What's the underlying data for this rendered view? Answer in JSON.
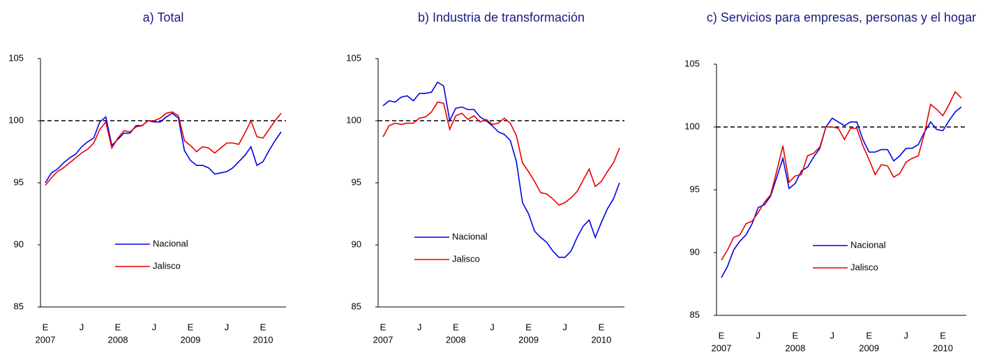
{
  "chart_data": [
    {
      "type": "line",
      "title": "a) Total",
      "categories": [
        "E",
        null,
        null,
        null,
        null,
        null,
        "J",
        null,
        null,
        null,
        null,
        null,
        "E",
        null,
        null,
        null,
        null,
        null,
        "J",
        null,
        null,
        null,
        null,
        null,
        "E",
        null,
        null,
        null,
        null,
        null,
        "J",
        null,
        null,
        null,
        null,
        null,
        "E",
        null,
        null,
        null
      ],
      "year_labels": [
        {
          "value": 0,
          "label": "2007"
        },
        {
          "value": 12,
          "label": "2008"
        },
        {
          "value": 24,
          "label": "2009"
        },
        {
          "value": 36,
          "label": "2010"
        }
      ],
      "series": [
        {
          "name": "Nacional",
          "color": "#0000e6",
          "values": [
            95.0,
            95.8,
            96.1,
            96.6,
            97.0,
            97.3,
            97.9,
            98.3,
            98.6,
            99.9,
            100.3,
            98.0,
            98.5,
            99.0,
            99.0,
            99.6,
            99.6,
            100.0,
            99.9,
            99.9,
            100.3,
            100.6,
            100.2,
            97.6,
            96.8,
            96.4,
            96.4,
            96.2,
            95.7,
            95.8,
            95.9,
            96.2,
            96.7,
            97.2,
            97.9,
            96.4,
            96.7,
            97.6,
            98.4,
            99.1
          ]
        },
        {
          "name": "Jalisco",
          "color": "#e60000",
          "values": [
            94.8,
            95.4,
            95.9,
            96.2,
            96.6,
            97.0,
            97.4,
            97.7,
            98.2,
            99.3,
            99.9,
            97.8,
            98.6,
            99.2,
            99.1,
            99.5,
            99.6,
            100.0,
            100.0,
            100.2,
            100.6,
            100.7,
            100.4,
            98.4,
            98.0,
            97.5,
            97.9,
            97.8,
            97.4,
            97.8,
            98.2,
            98.2,
            98.1,
            99.0,
            100.0,
            98.7,
            98.6,
            99.3,
            100.0,
            100.6
          ]
        }
      ],
      "ylim": [
        85,
        105
      ],
      "yticks": [
        85,
        90,
        95,
        100,
        105
      ],
      "reference_line": 100,
      "legend": "center"
    },
    {
      "type": "line",
      "title": "b) Industria de transformación",
      "categories": [
        "E",
        null,
        null,
        null,
        null,
        null,
        "J",
        null,
        null,
        null,
        null,
        null,
        "E",
        null,
        null,
        null,
        null,
        null,
        "J",
        null,
        null,
        null,
        null,
        null,
        "E",
        null,
        null,
        null,
        null,
        null,
        "J",
        null,
        null,
        null,
        null,
        null,
        "E",
        null,
        null,
        null
      ],
      "year_labels": [
        {
          "value": 0,
          "label": "2007"
        },
        {
          "value": 12,
          "label": "2008"
        },
        {
          "value": 24,
          "label": "2009"
        },
        {
          "value": 36,
          "label": "2010"
        }
      ],
      "series": [
        {
          "name": "Nacional",
          "color": "#0000e6",
          "values": [
            101.2,
            101.6,
            101.5,
            101.9,
            102.0,
            101.6,
            102.2,
            102.2,
            102.3,
            103.1,
            102.8,
            100.0,
            101.0,
            101.1,
            100.9,
            100.9,
            100.3,
            100.0,
            99.6,
            99.1,
            98.9,
            98.4,
            96.7,
            93.4,
            92.5,
            91.1,
            90.6,
            90.2,
            89.5,
            89.0,
            89.0,
            89.5,
            90.6,
            91.5,
            92.0,
            90.6,
            91.8,
            92.9,
            93.7,
            95.0
          ]
        },
        {
          "name": "Jalisco",
          "color": "#e60000",
          "values": [
            98.7,
            99.6,
            99.8,
            99.7,
            99.8,
            99.8,
            100.2,
            100.3,
            100.7,
            101.5,
            101.4,
            99.3,
            100.4,
            100.6,
            100.1,
            100.4,
            99.9,
            100.1,
            99.7,
            99.8,
            100.2,
            99.8,
            98.8,
            96.6,
            95.9,
            95.1,
            94.2,
            94.1,
            93.7,
            93.2,
            93.4,
            93.8,
            94.3,
            95.2,
            96.1,
            94.7,
            95.1,
            95.9,
            96.6,
            97.8
          ]
        }
      ],
      "ylim": [
        85,
        105
      ],
      "yticks": [
        85,
        90,
        95,
        100,
        105
      ],
      "reference_line": 100,
      "legend": "center"
    },
    {
      "type": "line",
      "title": "c) Servicios para empresas, personas y el hogar",
      "categories": [
        "E",
        null,
        null,
        null,
        null,
        null,
        "J",
        null,
        null,
        null,
        null,
        null,
        "E",
        null,
        null,
        null,
        null,
        null,
        "J",
        null,
        null,
        null,
        null,
        null,
        "E",
        null,
        null,
        null,
        null,
        null,
        "J",
        null,
        null,
        null,
        null,
        null,
        "E",
        null,
        null,
        null
      ],
      "year_labels": [
        {
          "value": 0,
          "label": "2007"
        },
        {
          "value": 12,
          "label": "2008"
        },
        {
          "value": 24,
          "label": "2009"
        },
        {
          "value": 36,
          "label": "2010"
        }
      ],
      "series": [
        {
          "name": "Nacional",
          "color": "#0000e6",
          "values": [
            88.0,
            88.9,
            90.2,
            90.9,
            91.4,
            92.3,
            93.6,
            93.8,
            94.5,
            96.0,
            97.5,
            95.1,
            95.5,
            96.5,
            96.8,
            97.6,
            98.3,
            100.0,
            100.7,
            100.4,
            100.1,
            100.4,
            100.4,
            99.0,
            98.0,
            98.0,
            98.2,
            98.2,
            97.3,
            97.7,
            98.3,
            98.3,
            98.6,
            99.6,
            100.4,
            99.8,
            99.7,
            100.5,
            101.2,
            101.6
          ]
        },
        {
          "name": "Jalisco",
          "color": "#e60000",
          "values": [
            89.4,
            90.2,
            91.2,
            91.4,
            92.3,
            92.5,
            93.2,
            94.0,
            94.6,
            96.5,
            98.5,
            95.6,
            96.1,
            96.2,
            97.7,
            97.9,
            98.4,
            100.0,
            100.0,
            99.9,
            99.0,
            99.9,
            99.9,
            98.5,
            97.4,
            96.2,
            97.0,
            96.9,
            96.0,
            96.3,
            97.2,
            97.5,
            97.7,
            99.5,
            101.8,
            101.4,
            100.9,
            101.8,
            102.8,
            102.3
          ]
        }
      ],
      "ylim": [
        85,
        105
      ],
      "yticks": [
        85,
        90,
        95,
        100,
        105
      ],
      "reference_line": 100,
      "legend": "center"
    }
  ]
}
